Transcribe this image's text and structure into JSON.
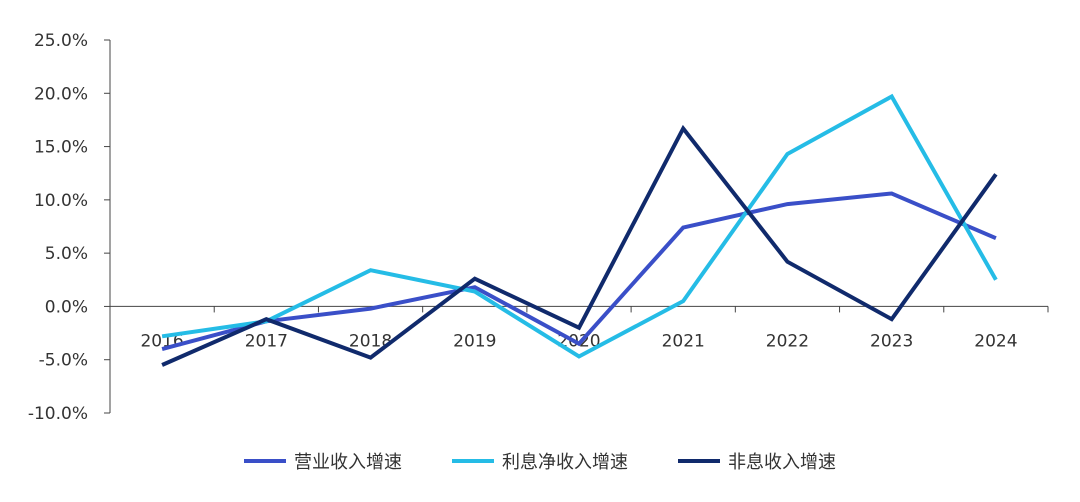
{
  "chart_data": {
    "type": "line",
    "title": "",
    "xlabel": "",
    "ylabel": "",
    "categories": [
      "2016",
      "2017",
      "2018",
      "2019",
      "2020",
      "2021",
      "2022",
      "2023",
      "2024"
    ],
    "ylim": [
      -10,
      25
    ],
    "yticks": [
      -10,
      -5,
      0,
      5,
      10,
      15,
      20,
      25
    ],
    "ytick_labels": [
      "-10.0%",
      "-5.0%",
      "0.0%",
      "5.0%",
      "10.0%",
      "15.0%",
      "20.0%",
      "25.0%"
    ],
    "grid": false,
    "legend_position": "bottom",
    "series": [
      {
        "name": "营业收入增速",
        "color": "#3A4FC8",
        "values": [
          -4.0,
          -1.4,
          -0.2,
          1.8,
          -3.5,
          7.4,
          9.6,
          10.6,
          6.4
        ]
      },
      {
        "name": "利息净收入增速",
        "color": "#25BCE6",
        "values": [
          -2.8,
          -1.4,
          3.4,
          1.4,
          -4.7,
          0.5,
          14.3,
          19.7,
          2.5
        ]
      },
      {
        "name": "非息收入增速",
        "color": "#102A6C",
        "values": [
          -5.5,
          -1.2,
          -4.8,
          2.6,
          -2.0,
          16.7,
          4.2,
          -1.2,
          12.4
        ]
      }
    ]
  }
}
